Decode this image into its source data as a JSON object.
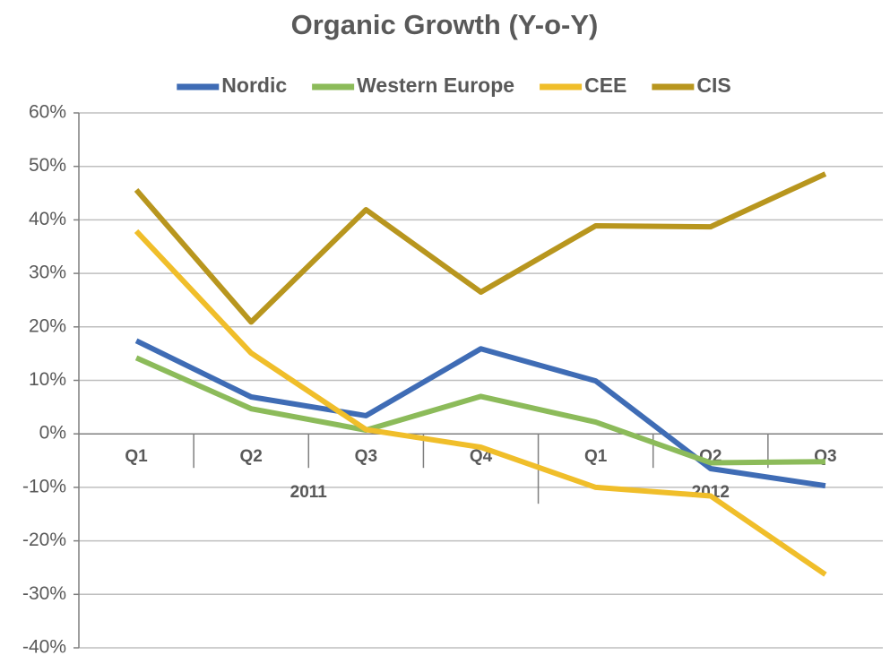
{
  "chart_data": {
    "type": "line",
    "title": "Organic Growth (Y-o-Y)",
    "category_groups": [
      {
        "label": "2011",
        "categories": [
          "Q1",
          "Q2",
          "Q3",
          "Q4"
        ]
      },
      {
        "label": "2012",
        "categories": [
          "Q1",
          "Q2",
          "Q3"
        ]
      }
    ],
    "series": [
      {
        "name": "Nordic",
        "color": "#3f6cb5",
        "values": [
          17.4,
          6.9,
          3.4,
          15.9,
          9.9,
          -6.5,
          -9.7
        ]
      },
      {
        "name": "Western Europe",
        "color": "#8cbb5a",
        "values": [
          14.2,
          4.7,
          0.7,
          7.0,
          2.2,
          -5.4,
          -5.2
        ]
      },
      {
        "name": "CEE",
        "color": "#f0be2a",
        "values": [
          37.9,
          15.1,
          0.8,
          -2.5,
          -10.0,
          -11.6,
          -26.3
        ]
      },
      {
        "name": "CIS",
        "color": "#b8961e",
        "values": [
          45.6,
          20.9,
          41.9,
          26.5,
          38.9,
          38.7,
          48.6
        ]
      }
    ],
    "ylim": [
      -40,
      60
    ],
    "yticks": [
      {
        "value": -40,
        "label": "-40%"
      },
      {
        "value": -30,
        "label": "-30%"
      },
      {
        "value": -20,
        "label": "-20%"
      },
      {
        "value": -10,
        "label": "-10%"
      },
      {
        "value": 0,
        "label": "0%"
      },
      {
        "value": 10,
        "label": "10%"
      },
      {
        "value": 20,
        "label": "20%"
      },
      {
        "value": 30,
        "label": "30%"
      },
      {
        "value": 40,
        "label": "40%"
      },
      {
        "value": 50,
        "label": "50%"
      },
      {
        "value": 60,
        "label": "60%"
      }
    ],
    "grid": true,
    "legend": "top"
  }
}
